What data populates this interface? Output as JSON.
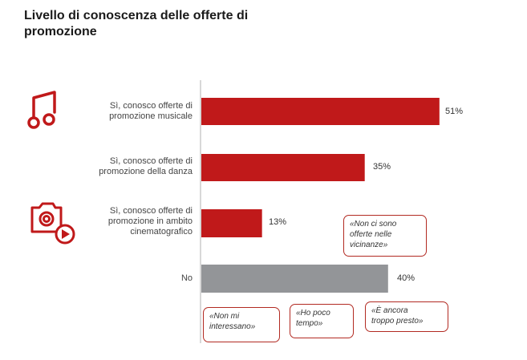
{
  "title": "Livello di conoscenza delle offerte di promozione",
  "colors": {
    "primary": "#c0191a",
    "neutral": "#939598",
    "axis": "#b0b0b0",
    "callout_border": "#b22a22"
  },
  "icons": [
    "music-note-icon",
    "camera-play-icon"
  ],
  "chart_data": {
    "type": "bar",
    "orientation": "horizontal",
    "categories": [
      "Sì, conosco offerte di\npromozione musicale",
      "Sì, conosco offerte di\npromozione della danza",
      "Sì, conosco offerte di\npromozione in ambito\ncinematografico",
      "No"
    ],
    "values": [
      51,
      35,
      13,
      40
    ],
    "value_labels": [
      "51%",
      "35%",
      "13%",
      "40%"
    ],
    "bar_colors": [
      "#c0191a",
      "#c0191a",
      "#c0191a",
      "#939598"
    ],
    "xlim": [
      0,
      60
    ],
    "grid": false,
    "legend": "none"
  },
  "callouts": [
    {
      "text": "«Non ci sono\nofferte nelle\nvicinanze»"
    },
    {
      "text": "«Non mi\ninteressano»"
    },
    {
      "text": "«Ho poco\ntempo»"
    },
    {
      "text": "«È ancora\ntroppo presto»"
    }
  ]
}
